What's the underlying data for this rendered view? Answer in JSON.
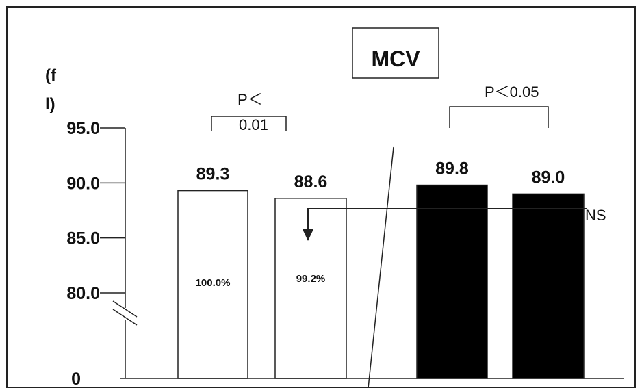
{
  "chart_data": {
    "type": "bar",
    "title": "MCV",
    "ylabel": "(fl)",
    "unit_line1": "(f",
    "unit_line2": "l)",
    "axis_break": true,
    "ylim": [
      80,
      95
    ],
    "y_ticks": [
      {
        "label": "95.0",
        "value": 95
      },
      {
        "label": "90.0",
        "value": 90
      },
      {
        "label": "85.0",
        "value": 85
      },
      {
        "label": "80.0",
        "value": 80
      }
    ],
    "zero_label": "0",
    "bars": [
      {
        "value": 89.3,
        "label": "89.3",
        "fill": "#ffffff",
        "percent_label": "100.0%"
      },
      {
        "value": 88.6,
        "label": "88.6",
        "fill": "#ffffff",
        "percent_label": "99.2%"
      },
      {
        "value": 89.8,
        "label": "89.8",
        "fill": "#000000",
        "percent_label": ""
      },
      {
        "value": 89.0,
        "label": "89.0",
        "fill": "#000000",
        "percent_label": ""
      }
    ],
    "annotations": {
      "left_p_line1": "P＜",
      "left_p_line2": "0.01",
      "right_p": "P＜0.05",
      "ns": "NS"
    }
  }
}
